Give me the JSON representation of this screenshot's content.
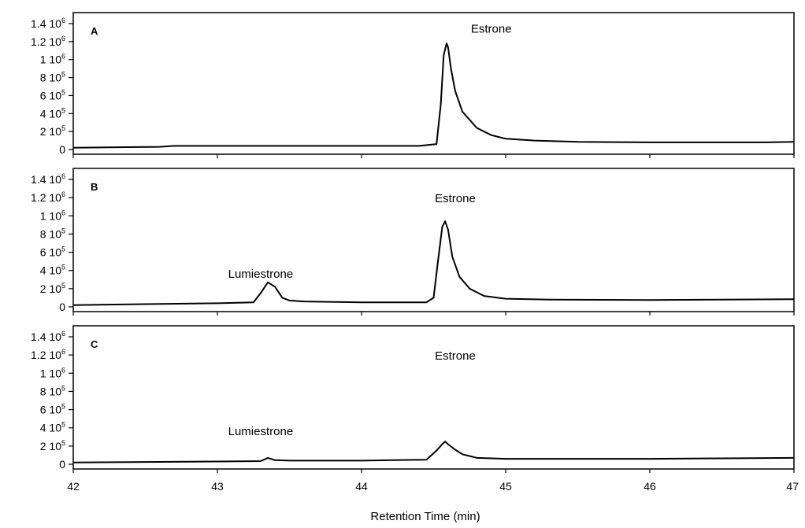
{
  "chart_data": {
    "type": "line",
    "xlabel": "Retention Time (min)",
    "xlim": [
      42,
      47
    ],
    "x_ticks": [
      "42",
      "43",
      "44",
      "45",
      "46",
      "47"
    ],
    "ylim": [
      0,
      1400000
    ],
    "y_ticks": [
      {
        "value": 0,
        "mantissa": "0",
        "exp": ""
      },
      {
        "value": 200000,
        "mantissa": "2 10",
        "exp": "5"
      },
      {
        "value": 400000,
        "mantissa": "4 10",
        "exp": "5"
      },
      {
        "value": 600000,
        "mantissa": "6 10",
        "exp": "5"
      },
      {
        "value": 800000,
        "mantissa": "8 10",
        "exp": "5"
      },
      {
        "value": 1000000,
        "mantissa": "1 10",
        "exp": "6"
      },
      {
        "value": 1200000,
        "mantissa": "1.2 10",
        "exp": "6"
      },
      {
        "value": 1400000,
        "mantissa": "1.4 10",
        "exp": "6"
      }
    ],
    "panels": [
      {
        "label": "A",
        "annotations": [
          {
            "text": "Estrone",
            "x": 44.9,
            "y": 1300000
          }
        ],
        "series": [
          {
            "x": [
              42.0,
              42.3,
              42.6,
              42.7,
              43.0,
              43.5,
              44.0,
              44.4,
              44.52,
              44.55,
              44.57,
              44.59,
              44.6,
              44.62,
              44.65,
              44.7,
              44.8,
              44.9,
              45.0,
              45.2,
              45.5,
              46.0,
              46.5,
              46.8,
              47.0
            ],
            "y": [
              20000,
              25000,
              30000,
              40000,
              40000,
              40000,
              40000,
              40000,
              60000,
              500000,
              1050000,
              1180000,
              1140000,
              900000,
              650000,
              420000,
              240000,
              160000,
              120000,
              100000,
              85000,
              80000,
              80000,
              80000,
              85000
            ]
          }
        ]
      },
      {
        "label": "B",
        "annotations": [
          {
            "text": "Lumiestrone",
            "x": 43.3,
            "y": 320000
          },
          {
            "text": "Estrone",
            "x": 44.65,
            "y": 1150000
          }
        ],
        "series": [
          {
            "x": [
              42.0,
              42.5,
              43.0,
              43.25,
              43.3,
              43.35,
              43.4,
              43.45,
              43.5,
              43.6,
              44.0,
              44.45,
              44.5,
              44.53,
              44.56,
              44.58,
              44.6,
              44.63,
              44.68,
              44.75,
              44.85,
              45.0,
              45.3,
              46.0,
              46.5,
              47.0
            ],
            "y": [
              20000,
              30000,
              40000,
              50000,
              150000,
              270000,
              220000,
              100000,
              70000,
              60000,
              50000,
              50000,
              100000,
              500000,
              880000,
              940000,
              850000,
              550000,
              330000,
              200000,
              120000,
              90000,
              80000,
              75000,
              80000,
              85000
            ]
          }
        ]
      },
      {
        "label": "C",
        "annotations": [
          {
            "text": "Lumiestrone",
            "x": 43.3,
            "y": 320000
          },
          {
            "text": "Estrone",
            "x": 44.65,
            "y": 1150000
          }
        ],
        "series": [
          {
            "x": [
              42.0,
              42.5,
              43.0,
              43.3,
              43.35,
              43.4,
              43.5,
              44.0,
              44.45,
              44.52,
              44.56,
              44.58,
              44.6,
              44.65,
              44.7,
              44.8,
              45.0,
              45.5,
              46.0,
              46.5,
              47.0
            ],
            "y": [
              20000,
              25000,
              30000,
              35000,
              70000,
              45000,
              40000,
              40000,
              50000,
              150000,
              220000,
              250000,
              220000,
              160000,
              110000,
              70000,
              60000,
              60000,
              60000,
              65000,
              70000
            ]
          }
        ]
      }
    ]
  }
}
